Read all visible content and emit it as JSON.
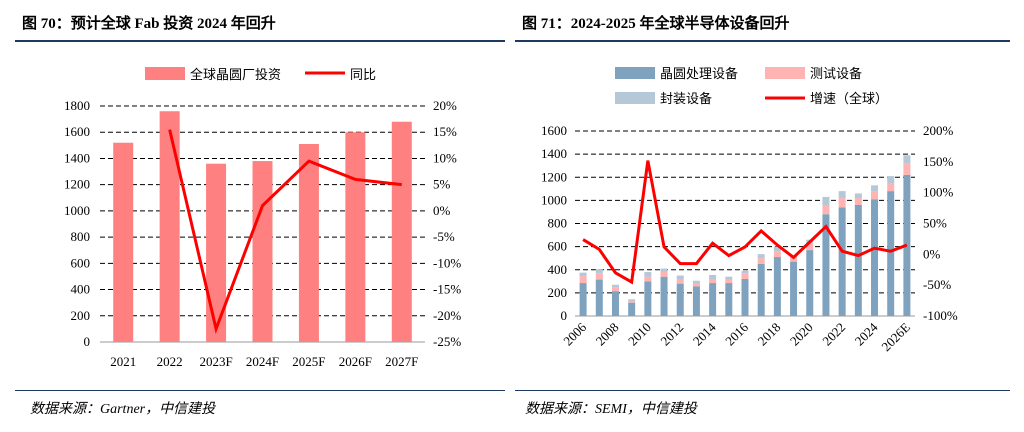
{
  "chart_data": [
    {
      "type": "bar+line",
      "title": "图 70：预计全球 Fab 投资 2024 年回升",
      "categories": [
        "2021",
        "2022",
        "2023F",
        "2024F",
        "2025F",
        "2026F",
        "2027F"
      ],
      "series": [
        {
          "name": "全球晶圆厂投资",
          "type": "bar",
          "axis": "left",
          "color": "#ff8080",
          "values": [
            1520,
            1760,
            1360,
            1380,
            1510,
            1600,
            1680
          ]
        },
        {
          "name": "同比",
          "type": "line",
          "axis": "right",
          "color": "#ff0000",
          "values": [
            null,
            15.5,
            -22.5,
            1,
            9.5,
            6,
            5
          ]
        }
      ],
      "ylim": [
        0,
        1800
      ],
      "yticks": [
        0,
        200,
        400,
        600,
        800,
        1000,
        1200,
        1400,
        1600,
        1800
      ],
      "y2lim": [
        -25,
        20
      ],
      "y2ticks": [
        "-25%",
        "-20%",
        "-15%",
        "-10%",
        "-5%",
        "0%",
        "5%",
        "10%",
        "15%",
        "20%"
      ],
      "grid": true,
      "legend": "top",
      "source": "数据来源：Gartner，中信建投"
    },
    {
      "type": "stacked-bar+line",
      "title": "图 71：2024-2025 年全球半导体设备回升",
      "categories": [
        "2006",
        "2007",
        "2008",
        "2009",
        "2010",
        "2011",
        "2012",
        "2013",
        "2014",
        "2015",
        "2016",
        "2017",
        "2018",
        "2019",
        "2020",
        "2021",
        "2022",
        "2023",
        "2024",
        "2025",
        "2026E"
      ],
      "xticklabels": [
        "2006",
        "2008",
        "2010",
        "2012",
        "2014",
        "2016",
        "2018",
        "2020",
        "2022",
        "2024",
        "2026E"
      ],
      "series": [
        {
          "name": "晶圆处理设备",
          "type": "bar",
          "color": "#7fa3bf",
          "values": [
            285,
            315,
            215,
            115,
            300,
            340,
            280,
            255,
            285,
            285,
            320,
            450,
            510,
            470,
            570,
            880,
            940,
            960,
            1010,
            1080,
            1220
          ]
        },
        {
          "name": "测试设备",
          "type": "bar",
          "color": "#ffb3b3",
          "values": [
            60,
            55,
            35,
            15,
            40,
            45,
            35,
            25,
            35,
            35,
            50,
            50,
            50,
            30,
            60,
            80,
            80,
            60,
            70,
            70,
            100
          ]
        },
        {
          "name": "封装设备",
          "type": "bar",
          "color": "#b4c8d8",
          "values": [
            30,
            35,
            20,
            15,
            40,
            25,
            35,
            25,
            35,
            20,
            20,
            35,
            40,
            20,
            30,
            70,
            60,
            40,
            50,
            60,
            70
          ]
        },
        {
          "name": "增速（全球）",
          "type": "line",
          "axis": "right",
          "color": "#ff0000",
          "values": [
            24,
            8,
            -30,
            -45,
            152,
            12,
            -15,
            -15,
            18,
            -2,
            12,
            38,
            15,
            -5,
            20,
            45,
            5,
            -2,
            10,
            5,
            15
          ]
        }
      ],
      "ylim": [
        0,
        1600
      ],
      "yticks": [
        0,
        200,
        400,
        600,
        800,
        1000,
        1200,
        1400,
        1600
      ],
      "y2lim": [
        -100,
        200
      ],
      "y2ticks": [
        "-100%",
        "-50%",
        "0%",
        "50%",
        "100%",
        "150%",
        "200%"
      ],
      "grid": true,
      "legend": "top",
      "source": "数据来源：SEMI，中信建投"
    }
  ]
}
